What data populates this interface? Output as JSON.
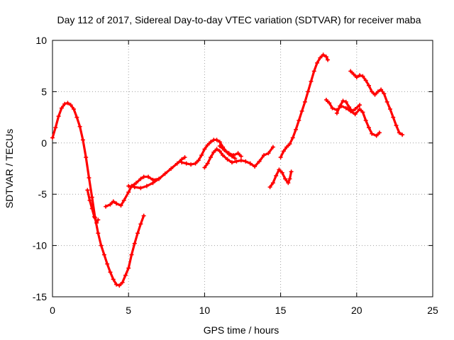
{
  "chart_data": {
    "type": "scatter",
    "title": "Day 112 of 2017, Sidereal Day-to-day VTEC variation (SDTVAR) for receiver maba",
    "xlabel": "GPS time / hours",
    "ylabel": "SDTVAR / TECUs",
    "xlim": [
      0,
      25
    ],
    "ylim": [
      -15,
      10
    ],
    "xticks": [
      0,
      5,
      10,
      15,
      20,
      25
    ],
    "yticks": [
      -15,
      -10,
      -5,
      0,
      5,
      10
    ],
    "grid": true,
    "marker": "plus",
    "color": "#ff0000",
    "series": [
      {
        "points": [
          [
            0.0,
            0.5
          ],
          [
            0.2,
            1.5
          ],
          [
            0.4,
            2.6
          ],
          [
            0.6,
            3.4
          ],
          [
            0.8,
            3.8
          ],
          [
            1.0,
            3.9
          ],
          [
            1.2,
            3.7
          ],
          [
            1.4,
            3.3
          ],
          [
            1.6,
            2.5
          ],
          [
            1.8,
            1.6
          ],
          [
            2.0,
            0.3
          ],
          [
            2.2,
            -1.4
          ],
          [
            2.4,
            -3.4
          ],
          [
            2.6,
            -5.3
          ],
          [
            2.8,
            -7.3
          ],
          [
            3.0,
            -8.8
          ],
          [
            3.2,
            -10.0
          ],
          [
            3.4,
            -10.9
          ],
          [
            3.6,
            -11.8
          ],
          [
            3.8,
            -12.6
          ],
          [
            4.0,
            -13.3
          ],
          [
            4.2,
            -13.8
          ],
          [
            4.4,
            -13.9
          ],
          [
            4.6,
            -13.6
          ],
          [
            4.8,
            -12.9
          ],
          [
            5.0,
            -12.2
          ],
          [
            5.2,
            -10.9
          ],
          [
            5.4,
            -9.8
          ],
          [
            5.6,
            -8.8
          ],
          [
            5.8,
            -7.9
          ],
          [
            6.0,
            -7.1
          ]
        ]
      },
      {
        "points": [
          [
            2.3,
            -4.6
          ],
          [
            2.45,
            -5.6
          ],
          [
            2.6,
            -6.4
          ],
          [
            2.75,
            -7.2
          ],
          [
            2.9,
            -7.8
          ],
          [
            3.0,
            -7.5
          ]
        ]
      },
      {
        "points": [
          [
            3.5,
            -6.2
          ],
          [
            3.8,
            -6.0
          ],
          [
            4.0,
            -5.7
          ],
          [
            4.2,
            -5.9
          ],
          [
            4.5,
            -6.1
          ],
          [
            4.7,
            -5.6
          ],
          [
            5.0,
            -4.8
          ],
          [
            5.2,
            -4.2
          ],
          [
            5.5,
            -3.9
          ],
          [
            5.8,
            -3.5
          ],
          [
            6.0,
            -3.3
          ],
          [
            6.3,
            -3.3
          ],
          [
            6.6,
            -3.6
          ],
          [
            7.0,
            -3.5
          ],
          [
            7.4,
            -3.0
          ],
          [
            7.8,
            -2.5
          ],
          [
            8.2,
            -2.0
          ],
          [
            8.5,
            -1.6
          ],
          [
            8.7,
            -1.4
          ]
        ]
      },
      {
        "points": [
          [
            5.0,
            -4.2
          ],
          [
            5.4,
            -4.3
          ],
          [
            5.8,
            -4.4
          ],
          [
            6.2,
            -4.2
          ],
          [
            6.6,
            -3.9
          ],
          [
            7.0,
            -3.5
          ]
        ]
      },
      {
        "points": [
          [
            8.5,
            -1.9
          ],
          [
            8.8,
            -2.0
          ],
          [
            9.1,
            -2.1
          ],
          [
            9.4,
            -2.0
          ],
          [
            9.6,
            -1.7
          ],
          [
            9.8,
            -1.2
          ],
          [
            10.0,
            -0.6
          ],
          [
            10.2,
            -0.2
          ],
          [
            10.4,
            0.1
          ],
          [
            10.6,
            0.3
          ],
          [
            10.8,
            0.3
          ],
          [
            11.0,
            0.1
          ],
          [
            11.2,
            -0.4
          ],
          [
            11.4,
            -0.8
          ],
          [
            11.6,
            -1.1
          ],
          [
            11.8,
            -1.3
          ],
          [
            12.0,
            -1.5
          ]
        ]
      },
      {
        "points": [
          [
            10.0,
            -2.4
          ],
          [
            10.2,
            -2.0
          ],
          [
            10.4,
            -1.4
          ],
          [
            10.6,
            -0.9
          ],
          [
            10.8,
            -0.6
          ],
          [
            11.0,
            -0.8
          ],
          [
            11.2,
            -1.2
          ],
          [
            11.5,
            -1.6
          ],
          [
            11.8,
            -1.9
          ],
          [
            12.1,
            -1.8
          ],
          [
            12.4,
            -1.7
          ],
          [
            12.7,
            -1.8
          ],
          [
            13.0,
            -2.0
          ],
          [
            13.3,
            -2.3
          ],
          [
            13.6,
            -1.8
          ],
          [
            13.9,
            -1.2
          ],
          [
            14.2,
            -1.0
          ],
          [
            14.5,
            -0.4
          ]
        ]
      },
      {
        "points": [
          [
            11.0,
            -0.3
          ],
          [
            11.3,
            -0.7
          ],
          [
            11.6,
            -1.0
          ],
          [
            11.9,
            -1.2
          ],
          [
            12.2,
            -1.0
          ],
          [
            12.4,
            -1.3
          ]
        ]
      },
      {
        "points": [
          [
            14.3,
            -4.3
          ],
          [
            14.5,
            -3.9
          ],
          [
            14.7,
            -3.2
          ],
          [
            14.9,
            -2.6
          ],
          [
            15.1,
            -2.9
          ],
          [
            15.3,
            -3.5
          ],
          [
            15.5,
            -3.9
          ],
          [
            15.6,
            -3.5
          ],
          [
            15.7,
            -2.8
          ]
        ]
      },
      {
        "points": [
          [
            15.0,
            -1.4
          ],
          [
            15.2,
            -0.8
          ],
          [
            15.4,
            -0.4
          ],
          [
            15.6,
            -0.1
          ],
          [
            15.8,
            0.5
          ],
          [
            16.0,
            1.3
          ],
          [
            16.2,
            2.2
          ],
          [
            16.4,
            3.1
          ],
          [
            16.6,
            4.0
          ],
          [
            16.8,
            5.0
          ],
          [
            17.0,
            6.0
          ],
          [
            17.2,
            7.0
          ],
          [
            17.4,
            7.8
          ],
          [
            17.6,
            8.3
          ],
          [
            17.8,
            8.6
          ],
          [
            18.0,
            8.4
          ],
          [
            18.1,
            8.1
          ]
        ]
      },
      {
        "points": [
          [
            18.0,
            4.2
          ],
          [
            18.2,
            3.9
          ],
          [
            18.4,
            3.4
          ],
          [
            18.7,
            3.2
          ],
          [
            19.0,
            3.6
          ],
          [
            19.3,
            3.4
          ],
          [
            19.6,
            3.1
          ],
          [
            19.9,
            2.8
          ],
          [
            20.2,
            3.3
          ],
          [
            20.4,
            3.0
          ],
          [
            20.6,
            2.2
          ],
          [
            20.8,
            1.5
          ],
          [
            21.0,
            0.9
          ],
          [
            21.3,
            0.7
          ],
          [
            21.5,
            1.0
          ]
        ]
      },
      {
        "points": [
          [
            18.7,
            2.9
          ],
          [
            18.9,
            3.6
          ],
          [
            19.1,
            4.1
          ],
          [
            19.3,
            4.0
          ],
          [
            19.5,
            3.5
          ],
          [
            19.7,
            3.1
          ],
          [
            19.9,
            3.3
          ],
          [
            20.2,
            3.7
          ]
        ]
      },
      {
        "points": [
          [
            19.6,
            7.0
          ],
          [
            19.8,
            6.7
          ],
          [
            20.0,
            6.4
          ],
          [
            20.2,
            6.6
          ],
          [
            20.4,
            6.5
          ],
          [
            20.6,
            6.1
          ],
          [
            20.8,
            5.6
          ],
          [
            21.0,
            5.0
          ],
          [
            21.2,
            4.7
          ],
          [
            21.4,
            5.0
          ],
          [
            21.6,
            5.2
          ],
          [
            21.8,
            4.8
          ],
          [
            22.0,
            4.0
          ],
          [
            22.2,
            3.3
          ],
          [
            22.4,
            2.5
          ],
          [
            22.6,
            1.7
          ],
          [
            22.8,
            1.0
          ],
          [
            23.0,
            0.8
          ]
        ]
      }
    ]
  }
}
